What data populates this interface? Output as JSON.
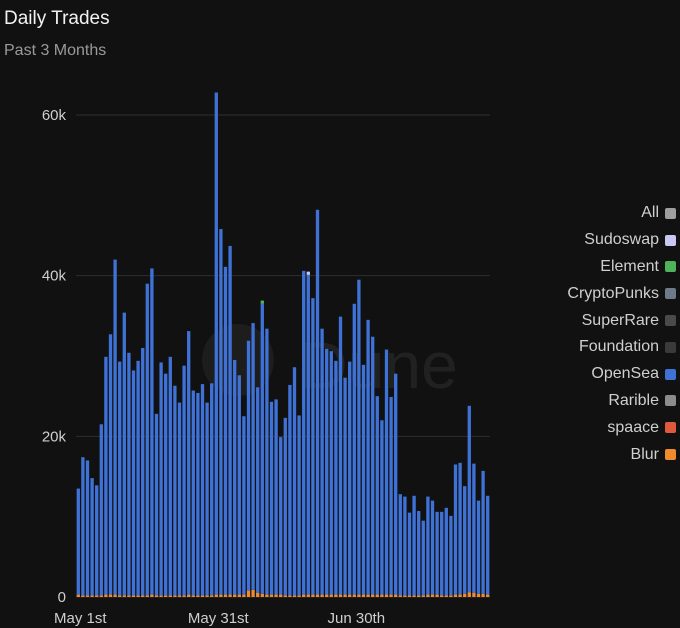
{
  "header": {
    "title": "Daily Trades",
    "subtitle": "Past 3 Months"
  },
  "watermark": "Dune",
  "legend": {
    "items": [
      {
        "label": "All",
        "color": "#9e9e9e"
      },
      {
        "label": "Sudoswap",
        "color": "#c9c8f2"
      },
      {
        "label": "Element",
        "color": "#4fb35c"
      },
      {
        "label": "CryptoPunks",
        "color": "#6c7a89"
      },
      {
        "label": "SuperRare",
        "color": "#4a4a4a"
      },
      {
        "label": "Foundation",
        "color": "#3a3a3a"
      },
      {
        "label": "OpenSea",
        "color": "#3f72d6"
      },
      {
        "label": "Rarible",
        "color": "#8c8c8c"
      },
      {
        "label": "spaace",
        "color": "#e0593c"
      },
      {
        "label": "Blur",
        "color": "#f08a2c"
      }
    ]
  },
  "chart_data": {
    "type": "bar",
    "stacked": true,
    "x_tick_labels": [
      "May 1st",
      "May 31st",
      "Jun 30th"
    ],
    "x_tick_indices": [
      0,
      30,
      60
    ],
    "y_tick_labels": [
      "0",
      "20k",
      "40k",
      "60k"
    ],
    "ylim": [
      0,
      65000
    ],
    "grid": true,
    "legend_position": "right",
    "opensea_values": [
      13200,
      17200,
      16800,
      14600,
      13700,
      21300,
      29600,
      32400,
      41700,
      29100,
      35200,
      30200,
      28000,
      29200,
      30800,
      38800,
      40600,
      22600,
      29000,
      27600,
      29700,
      26100,
      24000,
      28600,
      32800,
      25500,
      25200,
      26300,
      24000,
      26400,
      62500,
      45500,
      40800,
      43400,
      29200,
      27300,
      22200,
      31100,
      33200,
      25600,
      36100,
      33100,
      24000,
      24300,
      19600,
      22100,
      26200,
      28400,
      22400,
      40300,
      39800,
      36900,
      47900,
      33100,
      30600,
      30300,
      29100,
      34600,
      27000,
      29000,
      36200,
      39200,
      28600,
      34200,
      32100,
      24700,
      21700,
      30500,
      24600,
      27500,
      12600,
      12300,
      10300,
      12400,
      10500,
      9300,
      12200,
      11700,
      10300,
      10400,
      10900,
      9900,
      16200,
      16400,
      13400,
      23200,
      16100,
      11600,
      15300,
      12300
    ],
    "blur_values": [
      300,
      200,
      200,
      200,
      200,
      200,
      300,
      300,
      300,
      200,
      200,
      200,
      200,
      200,
      200,
      200,
      300,
      200,
      200,
      200,
      200,
      200,
      200,
      200,
      300,
      200,
      200,
      200,
      200,
      200,
      300,
      300,
      300,
      300,
      300,
      300,
      300,
      800,
      900,
      500,
      400,
      300,
      300,
      300,
      300,
      200,
      200,
      200,
      200,
      300,
      300,
      300,
      300,
      300,
      300,
      300,
      300,
      300,
      300,
      300,
      300,
      300,
      300,
      300,
      300,
      300,
      300,
      300,
      300,
      300,
      200,
      200,
      200,
      200,
      200,
      200,
      300,
      300,
      300,
      200,
      200,
      200,
      300,
      300,
      400,
      600,
      500,
      400,
      400,
      300
    ],
    "element_values": [
      0,
      0,
      0,
      0,
      0,
      0,
      0,
      0,
      0,
      0,
      0,
      0,
      0,
      0,
      0,
      0,
      0,
      0,
      0,
      0,
      0,
      0,
      0,
      0,
      0,
      0,
      0,
      0,
      0,
      0,
      0,
      0,
      0,
      0,
      0,
      0,
      0,
      0,
      0,
      0,
      400,
      0,
      0,
      0,
      0,
      0,
      0,
      0,
      0,
      0,
      0,
      0,
      0,
      0,
      0,
      0,
      0,
      0,
      0,
      0,
      0,
      0,
      0,
      0,
      0,
      0,
      0,
      0,
      0,
      0,
      0,
      0,
      0,
      0,
      0,
      0,
      0,
      0,
      0,
      0,
      0,
      0,
      0,
      0,
      0,
      0,
      0,
      0,
      0,
      0
    ],
    "sudoswap_values": [
      0,
      0,
      0,
      0,
      0,
      0,
      0,
      0,
      0,
      0,
      0,
      0,
      0,
      0,
      0,
      0,
      0,
      0,
      0,
      0,
      0,
      0,
      0,
      0,
      0,
      0,
      0,
      0,
      0,
      0,
      0,
      0,
      0,
      0,
      0,
      0,
      0,
      0,
      0,
      0,
      0,
      0,
      0,
      0,
      0,
      0,
      0,
      0,
      0,
      0,
      400,
      0,
      0,
      0,
      0,
      0,
      0,
      0,
      0,
      0,
      0,
      0,
      0,
      0,
      0,
      0,
      0,
      0,
      0,
      0,
      0,
      0,
      0,
      0,
      0,
      0,
      0,
      0,
      0,
      0,
      0,
      0,
      0,
      0,
      0,
      0,
      0,
      0,
      0,
      0
    ]
  }
}
